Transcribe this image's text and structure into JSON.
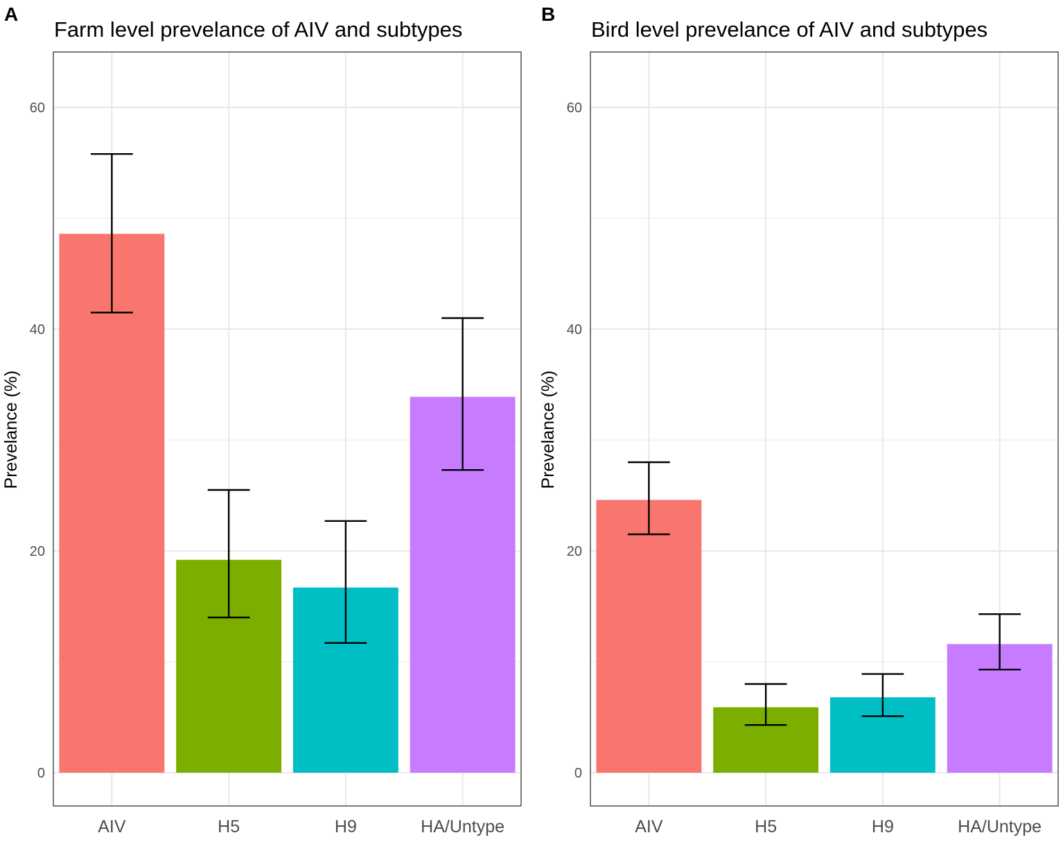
{
  "chart_data": [
    {
      "type": "bar",
      "panel_label": "A",
      "title": "Farm level prevelance of AIV and subtypes",
      "xlabel": "",
      "ylabel": "Prevelance (%)",
      "ylim": [
        -3,
        65
      ],
      "yticks": [
        0,
        20,
        40,
        60
      ],
      "categories": [
        "AIV",
        "H5",
        "H9",
        "HA/Untype"
      ],
      "values": [
        48.6,
        19.2,
        16.7,
        33.9
      ],
      "error_lower": [
        41.5,
        14.0,
        11.7,
        27.3
      ],
      "error_upper": [
        55.8,
        25.5,
        22.7,
        41.0
      ],
      "colors": [
        "#F8766D",
        "#7CAE00",
        "#00BFC4",
        "#C77CFF"
      ],
      "grid": true,
      "legend": "none"
    },
    {
      "type": "bar",
      "panel_label": "B",
      "title": "Bird level prevelance of AIV and subtypes",
      "xlabel": "",
      "ylabel": "Prevelance (%)",
      "ylim": [
        -3,
        65
      ],
      "yticks": [
        0,
        20,
        40,
        60
      ],
      "categories": [
        "AIV",
        "H5",
        "H9",
        "HA/Untype"
      ],
      "values": [
        24.6,
        5.9,
        6.8,
        11.6
      ],
      "error_lower": [
        21.5,
        4.3,
        5.1,
        9.3
      ],
      "error_upper": [
        28.0,
        8.0,
        8.9,
        14.3
      ],
      "colors": [
        "#F8766D",
        "#7CAE00",
        "#00BFC4",
        "#C77CFF"
      ],
      "grid": true,
      "legend": "none"
    }
  ]
}
